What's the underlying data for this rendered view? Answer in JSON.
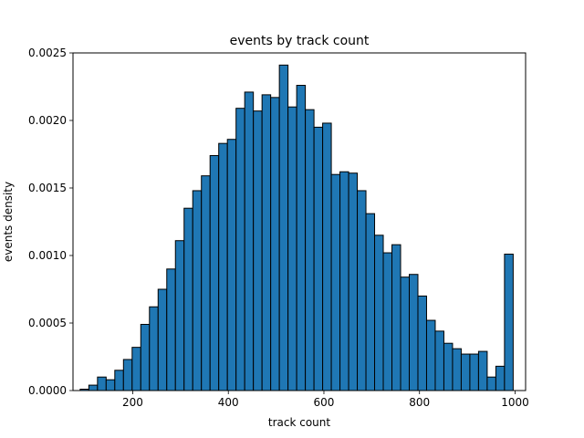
{
  "chart_data": {
    "type": "bar",
    "title": "events by track count",
    "xlabel": "track count",
    "ylabel": "events density",
    "xlim": [
      75,
      1022
    ],
    "ylim": [
      0,
      0.0025
    ],
    "x_ticks": [
      200,
      400,
      600,
      800,
      1000
    ],
    "y_ticks": [
      "0.0000",
      "0.0005",
      "0.0010",
      "0.0015",
      "0.0020",
      "0.0025"
    ],
    "y_tick_values": [
      0,
      0.0005,
      0.001,
      0.0015,
      0.002,
      0.0025
    ],
    "bin_start": 90,
    "bin_width": 18.12,
    "bar_color": "#1f77b4",
    "edge_color": "#000000",
    "values": [
      1e-05,
      4e-05,
      0.0001,
      8e-05,
      0.00015,
      0.00023,
      0.00032,
      0.00049,
      0.00062,
      0.00075,
      0.0009,
      0.00111,
      0.00135,
      0.00148,
      0.00159,
      0.00174,
      0.00183,
      0.00186,
      0.00209,
      0.00221,
      0.00207,
      0.00219,
      0.00217,
      0.00241,
      0.0021,
      0.00226,
      0.00208,
      0.00195,
      0.00198,
      0.0016,
      0.00162,
      0.00161,
      0.00148,
      0.00131,
      0.00115,
      0.00102,
      0.00108,
      0.00084,
      0.00086,
      0.0007,
      0.00052,
      0.00044,
      0.00035,
      0.00031,
      0.00027,
      0.00027,
      0.00029,
      0.0001,
      0.00018,
      0.00101
    ]
  }
}
